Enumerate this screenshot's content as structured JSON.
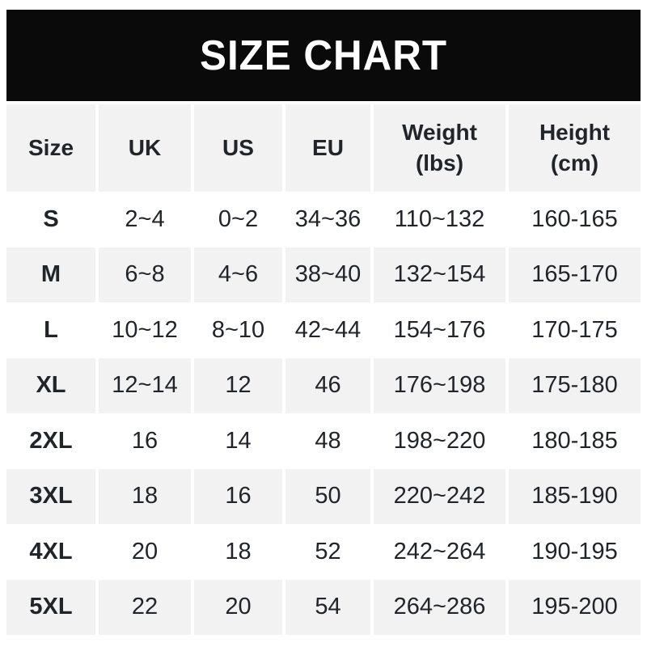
{
  "banner": {
    "title": "SIZE CHART"
  },
  "colors": {
    "banner_bg": "#0a0a0a",
    "banner_text": "#ffffff",
    "stripe_bg": "#f2f2f3",
    "page_bg": "#ffffff",
    "text": "#212529"
  },
  "table": {
    "headers": {
      "size": "Size",
      "uk": "UK",
      "us": "US",
      "eu": "EU",
      "weight": "Weight\n(lbs)",
      "height": "Height\n(cm)"
    },
    "rows": [
      {
        "size": "S",
        "uk": "2~4",
        "us": "0~2",
        "eu": "34~36",
        "weight": "110~132",
        "height": "160-165"
      },
      {
        "size": "M",
        "uk": "6~8",
        "us": "4~6",
        "eu": "38~40",
        "weight": "132~154",
        "height": "165-170"
      },
      {
        "size": "L",
        "uk": "10~12",
        "us": "8~10",
        "eu": "42~44",
        "weight": "154~176",
        "height": "170-175"
      },
      {
        "size": "XL",
        "uk": "12~14",
        "us": "12",
        "eu": "46",
        "weight": "176~198",
        "height": "175-180"
      },
      {
        "size": "2XL",
        "uk": "16",
        "us": "14",
        "eu": "48",
        "weight": "198~220",
        "height": "180-185"
      },
      {
        "size": "3XL",
        "uk": "18",
        "us": "16",
        "eu": "50",
        "weight": "220~242",
        "height": "185-190"
      },
      {
        "size": "4XL",
        "uk": "20",
        "us": "18",
        "eu": "52",
        "weight": "242~264",
        "height": "190-195"
      },
      {
        "size": "5XL",
        "uk": "22",
        "us": "20",
        "eu": "54",
        "weight": "264~286",
        "height": "195-200"
      }
    ]
  }
}
